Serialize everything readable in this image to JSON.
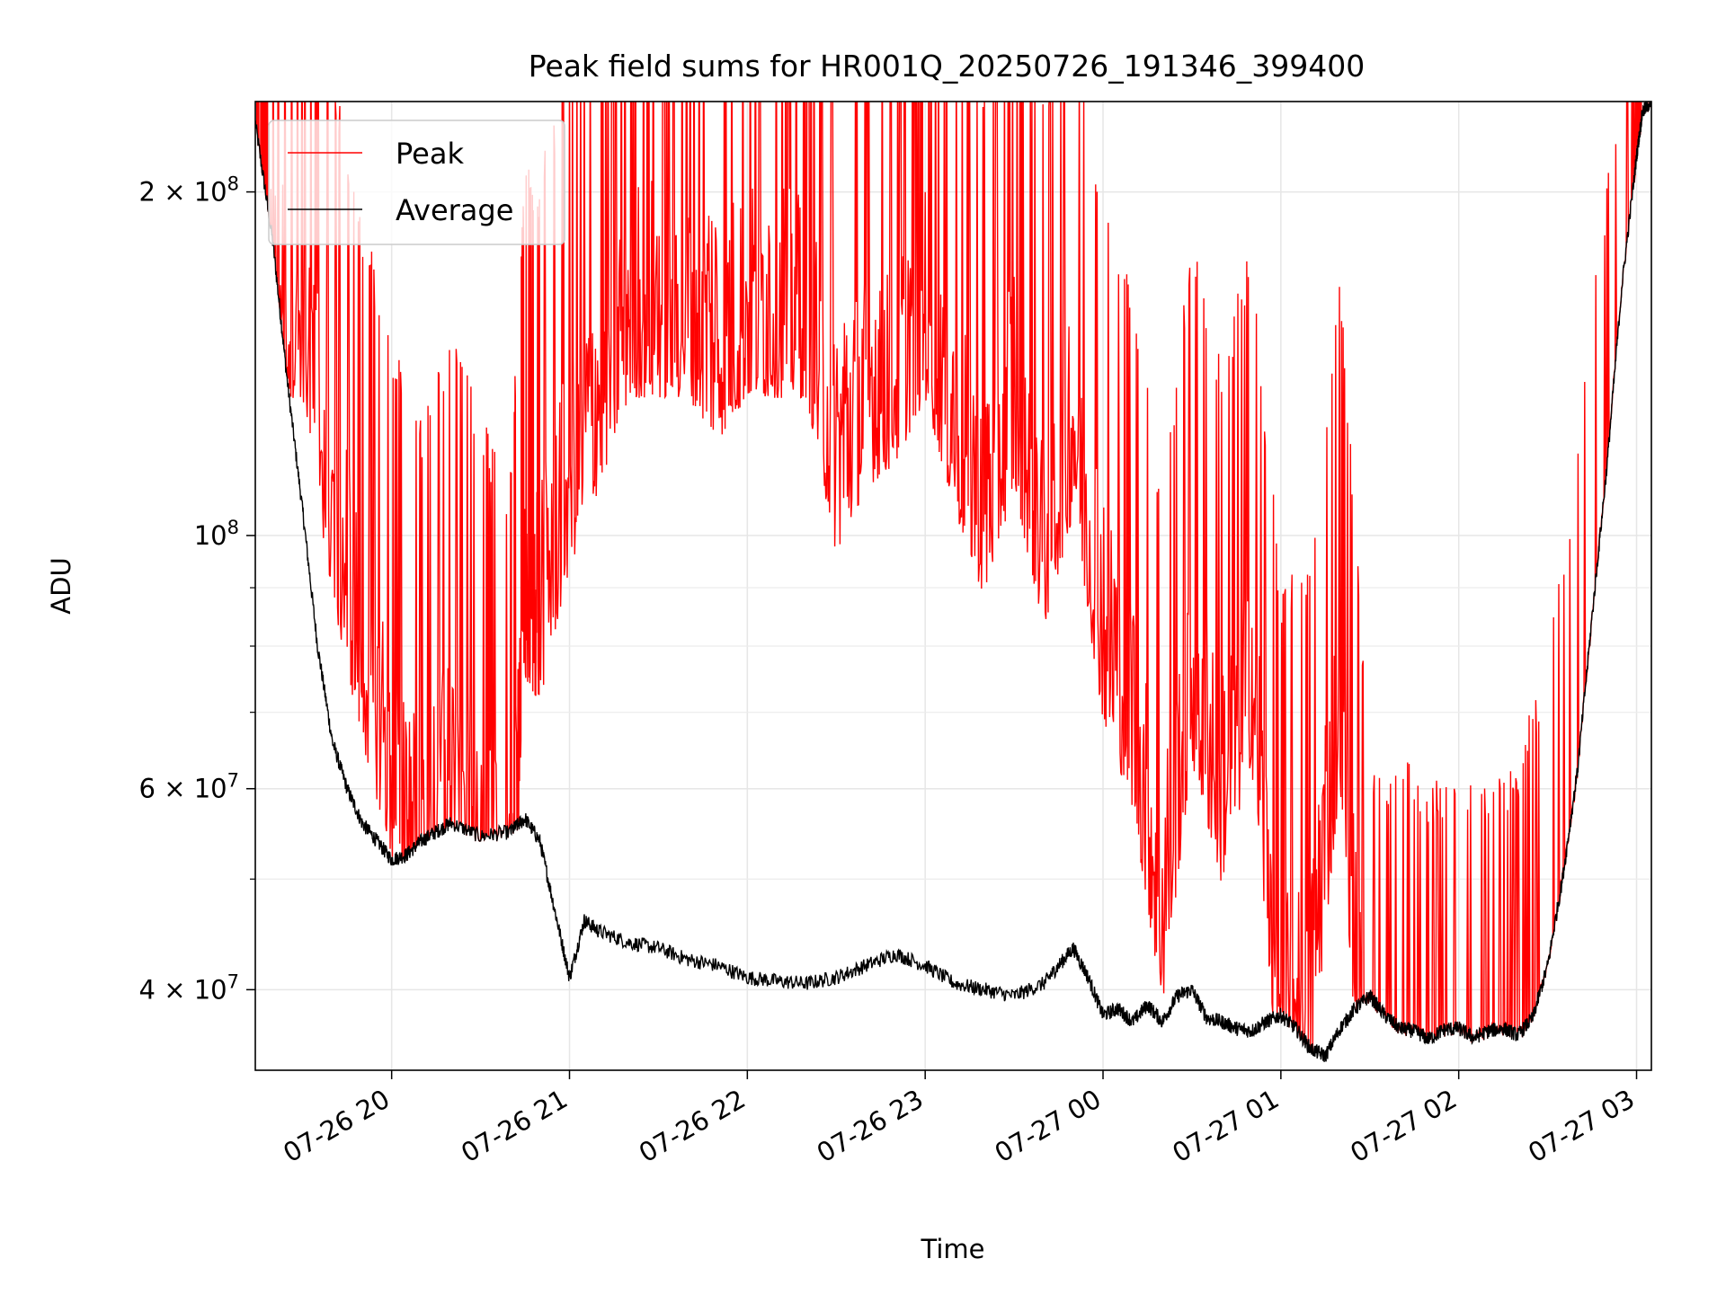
{
  "chart_data": {
    "type": "line",
    "title": "Peak field sums for HR001Q_20250726_191346_399400",
    "xlabel": "Time",
    "ylabel": "ADU",
    "yscale": "log",
    "xlim": [
      "2025-07-26 19:14",
      "2025-07-27 03:05"
    ],
    "ylim": [
      34000000,
      240000000
    ],
    "x_tick_labels": [
      "07-26 20",
      "07-26 21",
      "07-26 22",
      "07-26 23",
      "07-27 00",
      "07-27 01",
      "07-27 02",
      "07-27 03"
    ],
    "x_ticks": [
      "2025-07-26 20:00",
      "2025-07-26 21:00",
      "2025-07-26 22:00",
      "2025-07-26 23:00",
      "2025-07-27 00:00",
      "2025-07-27 01:00",
      "2025-07-27 02:00",
      "2025-07-27 03:00"
    ],
    "y_ticks": [
      {
        "value": 40000000,
        "mantissa": "4",
        "exp": "7"
      },
      {
        "value": 60000000,
        "mantissa": "6",
        "exp": "7"
      },
      {
        "value": 100000000,
        "mantissa": "",
        "exp": "8"
      },
      {
        "value": 200000000,
        "mantissa": "2",
        "exp": "8"
      }
    ],
    "y_minor_ticks": [
      50000000,
      70000000,
      80000000,
      90000000
    ],
    "grid": true,
    "legend_position": "upper-left",
    "series": [
      {
        "name": "Peak",
        "color": "#ff0000",
        "x": [
          "2025-07-26 19:14",
          "2025-07-26 19:20",
          "2025-07-26 19:30",
          "2025-07-26 19:40",
          "2025-07-26 19:50",
          "2025-07-26 20:00",
          "2025-07-26 20:10",
          "2025-07-26 20:20",
          "2025-07-26 20:30",
          "2025-07-26 20:40",
          "2025-07-26 20:45",
          "2025-07-26 20:50",
          "2025-07-26 21:00",
          "2025-07-26 21:10",
          "2025-07-26 21:20",
          "2025-07-26 21:30",
          "2025-07-26 21:40",
          "2025-07-26 21:50",
          "2025-07-26 22:00",
          "2025-07-26 22:10",
          "2025-07-26 22:20",
          "2025-07-26 22:30",
          "2025-07-26 22:40",
          "2025-07-26 22:50",
          "2025-07-26 23:00",
          "2025-07-26 23:10",
          "2025-07-26 23:20",
          "2025-07-26 23:30",
          "2025-07-26 23:40",
          "2025-07-26 23:50",
          "2025-07-27 00:00",
          "2025-07-27 00:10",
          "2025-07-27 00:20",
          "2025-07-27 00:30",
          "2025-07-27 00:40",
          "2025-07-27 00:50",
          "2025-07-27 01:00",
          "2025-07-27 01:10",
          "2025-07-27 01:20",
          "2025-07-27 01:30",
          "2025-07-27 01:40",
          "2025-07-27 01:50",
          "2025-07-27 02:00",
          "2025-07-27 02:10",
          "2025-07-27 02:20",
          "2025-07-27 02:30",
          "2025-07-27 02:40",
          "2025-07-27 02:50",
          "2025-07-27 03:00",
          "2025-07-27 03:05"
        ],
        "values": [
          240000000,
          240000000,
          240000000,
          160000000,
          120000000,
          95000000,
          80000000,
          95000000,
          80000000,
          70000000,
          135000000,
          130000000,
          170000000,
          200000000,
          240000000,
          240000000,
          240000000,
          220000000,
          240000000,
          240000000,
          240000000,
          175000000,
          200000000,
          210000000,
          240000000,
          190000000,
          160000000,
          200000000,
          150000000,
          190000000,
          125000000,
          105000000,
          70000000,
          115000000,
          90000000,
          115000000,
          57000000,
          60000000,
          110000000,
          40000000,
          40000000,
          38500000,
          38000000,
          38500000,
          40000000,
          50000000,
          75000000,
          130000000,
          200000000,
          240000000
        ]
      },
      {
        "name": "Average",
        "color": "#000000",
        "x": [
          "2025-07-26 19:14",
          "2025-07-26 19:20",
          "2025-07-26 19:25",
          "2025-07-26 19:30",
          "2025-07-26 19:35",
          "2025-07-26 19:40",
          "2025-07-26 19:45",
          "2025-07-26 19:50",
          "2025-07-26 19:55",
          "2025-07-26 20:00",
          "2025-07-26 20:05",
          "2025-07-26 20:10",
          "2025-07-26 20:15",
          "2025-07-26 20:20",
          "2025-07-26 20:30",
          "2025-07-26 20:40",
          "2025-07-26 20:45",
          "2025-07-26 20:50",
          "2025-07-26 20:55",
          "2025-07-26 21:00",
          "2025-07-26 21:05",
          "2025-07-26 21:10",
          "2025-07-26 21:20",
          "2025-07-26 21:30",
          "2025-07-26 21:40",
          "2025-07-26 21:50",
          "2025-07-26 22:00",
          "2025-07-26 22:10",
          "2025-07-26 22:20",
          "2025-07-26 22:30",
          "2025-07-26 22:40",
          "2025-07-26 22:50",
          "2025-07-26 23:00",
          "2025-07-26 23:10",
          "2025-07-26 23:20",
          "2025-07-26 23:30",
          "2025-07-26 23:40",
          "2025-07-26 23:45",
          "2025-07-26 23:50",
          "2025-07-26 23:55",
          "2025-07-27 00:00",
          "2025-07-27 00:05",
          "2025-07-27 00:10",
          "2025-07-27 00:15",
          "2025-07-27 00:20",
          "2025-07-27 00:25",
          "2025-07-27 00:30",
          "2025-07-27 00:35",
          "2025-07-27 00:40",
          "2025-07-27 00:45",
          "2025-07-27 00:50",
          "2025-07-27 00:55",
          "2025-07-27 01:00",
          "2025-07-27 01:05",
          "2025-07-27 01:10",
          "2025-07-27 01:15",
          "2025-07-27 01:20",
          "2025-07-27 01:25",
          "2025-07-27 01:30",
          "2025-07-27 01:35",
          "2025-07-27 01:40",
          "2025-07-27 01:45",
          "2025-07-27 01:50",
          "2025-07-27 01:55",
          "2025-07-27 02:00",
          "2025-07-27 02:05",
          "2025-07-27 02:10",
          "2025-07-27 02:15",
          "2025-07-27 02:20",
          "2025-07-27 02:25",
          "2025-07-27 02:30",
          "2025-07-27 02:35",
          "2025-07-27 02:40",
          "2025-07-27 02:45",
          "2025-07-27 02:50",
          "2025-07-27 02:55",
          "2025-07-27 03:00",
          "2025-07-27 03:02",
          "2025-07-27 03:05"
        ],
        "values": [
          230000000,
          180000000,
          135000000,
          105000000,
          80000000,
          66000000,
          60000000,
          56000000,
          54000000,
          52000000,
          52500000,
          54000000,
          55000000,
          56000000,
          54500000,
          55000000,
          56500000,
          54000000,
          47000000,
          41000000,
          46000000,
          45000000,
          44000000,
          43500000,
          42500000,
          42000000,
          41000000,
          40700000,
          40500000,
          41000000,
          42000000,
          43000000,
          42000000,
          40500000,
          40000000,
          39500000,
          40500000,
          42000000,
          43500000,
          41000000,
          38000000,
          38500000,
          37500000,
          38800000,
          37500000,
          39500000,
          40000000,
          37800000,
          37500000,
          37000000,
          36800000,
          37500000,
          38000000,
          37000000,
          35500000,
          35000000,
          37000000,
          38500000,
          39500000,
          38000000,
          37000000,
          36800000,
          36200000,
          36900000,
          37000000,
          36300000,
          36800000,
          37000000,
          36500000,
          37800000,
          42000000,
          50000000,
          62000000,
          85000000,
          115000000,
          165000000,
          215000000,
          235000000,
          240000000
        ]
      }
    ]
  }
}
